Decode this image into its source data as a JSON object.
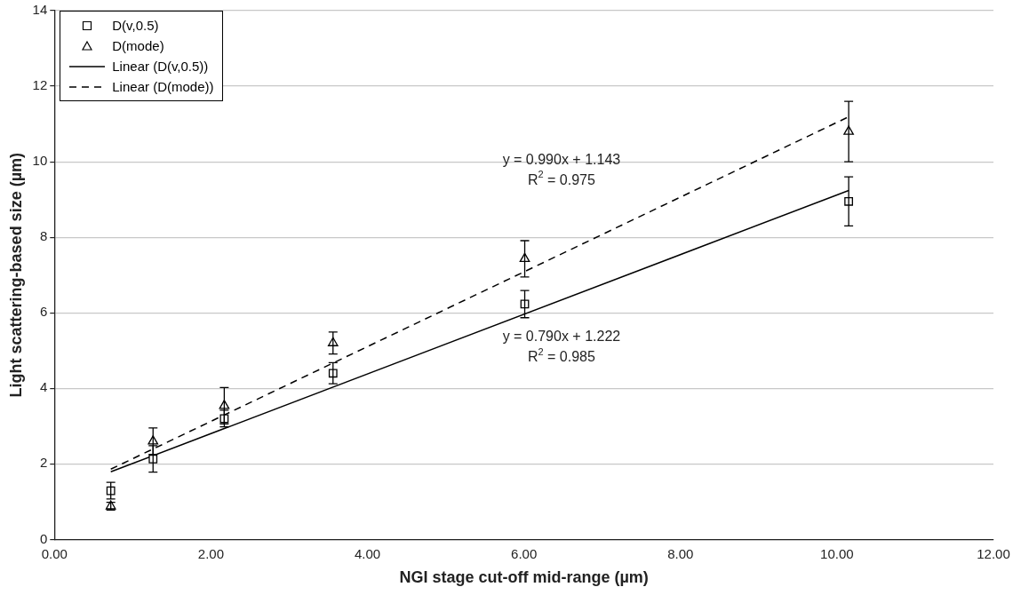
{
  "chart_data": {
    "type": "scatter",
    "xlabel": "NGI stage cut-off mid-range (µm)",
    "ylabel": "Light scattering-based size (µm)",
    "xlim": [
      0,
      12
    ],
    "xticks": [
      {
        "value": 0,
        "label": "0.00"
      },
      {
        "value": 2,
        "label": "2.00"
      },
      {
        "value": 4,
        "label": "4.00"
      },
      {
        "value": 6,
        "label": "6.00"
      },
      {
        "value": 8,
        "label": "8.00"
      },
      {
        "value": 10,
        "label": "10.00"
      },
      {
        "value": 12,
        "label": "12.00"
      }
    ],
    "ylim": [
      0,
      14
    ],
    "yticks": [
      0,
      2,
      4,
      6,
      8,
      10,
      12,
      14
    ],
    "grid": "y",
    "legend": "top left",
    "series": [
      {
        "name": "D(v,0.5)",
        "color": "#000000",
        "marker": "square",
        "x": [
          0.72,
          1.26,
          2.17,
          3.56,
          6.01,
          10.15
        ],
        "values": [
          1.29,
          2.13,
          3.2,
          4.4,
          6.23,
          8.95
        ],
        "errors": [
          0.22,
          0.35,
          0.22,
          0.28,
          0.36,
          0.65
        ]
      },
      {
        "name": "D(mode)",
        "color": "#000000",
        "marker": "triangle",
        "x": [
          0.72,
          1.26,
          2.17,
          3.56,
          6.01,
          10.15
        ],
        "values": [
          0.88,
          2.6,
          3.54,
          5.2,
          7.43,
          10.8
        ],
        "errors": [
          0.1,
          0.35,
          0.48,
          0.29,
          0.48,
          0.8
        ]
      },
      {
        "name": "Linear (D(v,0.5))",
        "type": "line",
        "color": "#000000",
        "marker": "none",
        "line_style": "solid",
        "x": [
          0.72,
          10.15
        ],
        "values": [
          1.79,
          9.24
        ]
      },
      {
        "name": "Linear (D(mode))",
        "type": "line",
        "color": "#000000",
        "marker": "none",
        "line_style": "dashed",
        "x": [
          0.72,
          10.15
        ],
        "values": [
          1.86,
          11.19
        ]
      }
    ],
    "annotations": [
      "y = 0.990x + 1.143",
      "R$^{2}$ = 0.975",
      "y = 0.790x + 1.222",
      "R$^{2}$ = 0.985"
    ]
  }
}
